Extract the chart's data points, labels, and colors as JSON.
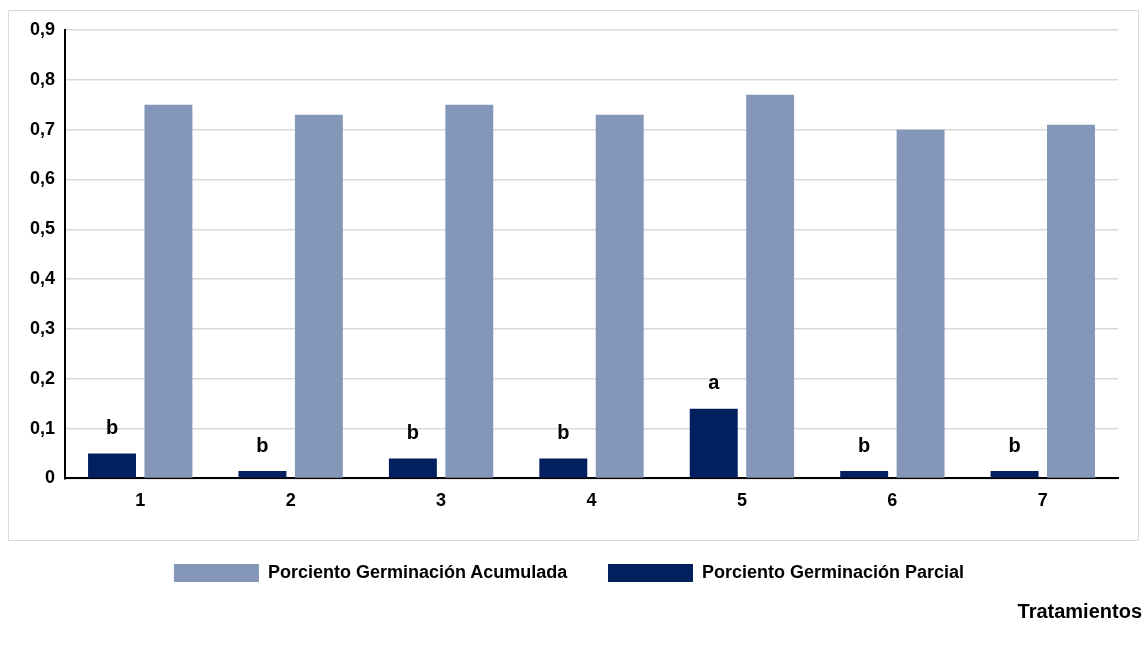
{
  "chart_data": {
    "type": "bar",
    "xlabel": "Tratamientos",
    "categories": [
      "1",
      "2",
      "3",
      "4",
      "5",
      "6",
      "7"
    ],
    "series": [
      {
        "name": "Porciento Germinación Parcial",
        "color": "#021f5e",
        "values": [
          0.05,
          0.015,
          0.04,
          0.04,
          0.14,
          0.015,
          0.015
        ]
      },
      {
        "name": "Porciento Germinación Acumulada",
        "color": "#8597b8",
        "values": [
          0.75,
          0.73,
          0.75,
          0.73,
          0.77,
          0.7,
          0.71
        ]
      }
    ],
    "ylim": [
      0,
      0.9
    ],
    "yticks": [
      {
        "value": 0,
        "label": "0"
      },
      {
        "value": 0.1,
        "label": "0,1"
      },
      {
        "value": 0.2,
        "label": "0,2"
      },
      {
        "value": 0.3,
        "label": "0,3"
      },
      {
        "value": 0.4,
        "label": "0,4"
      },
      {
        "value": 0.5,
        "label": "0,5"
      },
      {
        "value": 0.6,
        "label": "0,6"
      },
      {
        "value": 0.7,
        "label": "0,7"
      },
      {
        "value": 0.8,
        "label": "0,8"
      },
      {
        "value": 0.9,
        "label": "0,9"
      }
    ],
    "grid": "y",
    "legend": "bottom",
    "annotations": [
      {
        "text": "b",
        "x": "1",
        "y": 0.1
      },
      {
        "text": "b",
        "x": "2",
        "y": 0.065
      },
      {
        "text": "b",
        "x": "3",
        "y": 0.09
      },
      {
        "text": "b",
        "x": "4",
        "y": 0.09
      },
      {
        "text": "a",
        "x": "5",
        "y": 0.19
      },
      {
        "text": "b",
        "x": "6",
        "y": 0.065
      },
      {
        "text": "b",
        "x": "7",
        "y": 0.065
      }
    ]
  }
}
